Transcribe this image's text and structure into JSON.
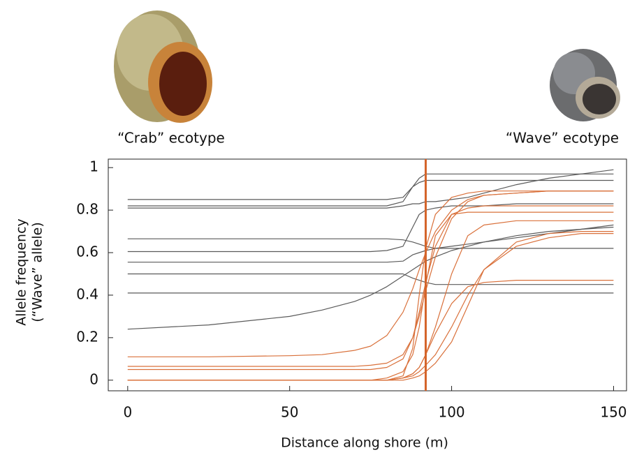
{
  "chart_data": {
    "type": "line",
    "labels": [
      "“Crab” ecotype",
      "“Wave” ecotype"
    ],
    "xlabel": "Distance along shore (m)",
    "ylabel": [
      "Allele frequency",
      "(“Wave” allele)"
    ],
    "x": [
      0,
      25,
      50,
      60,
      70,
      75,
      80,
      85,
      88,
      90,
      92,
      95,
      100,
      105,
      110,
      120,
      130,
      140,
      150
    ],
    "series": [
      {
        "color": "#5a5a5a",
        "values": [
          0.85,
          0.85,
          0.85,
          0.85,
          0.85,
          0.85,
          0.85,
          0.86,
          0.91,
          0.95,
          0.97,
          0.97,
          0.97,
          0.97,
          0.97,
          0.97,
          0.97,
          0.97,
          0.97
        ]
      },
      {
        "color": "#5a5a5a",
        "values": [
          0.82,
          0.82,
          0.82,
          0.82,
          0.82,
          0.82,
          0.82,
          0.84,
          0.91,
          0.93,
          0.94,
          0.94,
          0.94,
          0.94,
          0.94,
          0.94,
          0.94,
          0.94,
          0.94
        ]
      },
      {
        "color": "#5a5a5a",
        "values": [
          0.81,
          0.81,
          0.81,
          0.81,
          0.81,
          0.81,
          0.81,
          0.82,
          0.83,
          0.83,
          0.84,
          0.84,
          0.85,
          0.86,
          0.88,
          0.92,
          0.95,
          0.97,
          0.99
        ]
      },
      {
        "color": "#5a5a5a",
        "values": [
          0.605,
          0.605,
          0.605,
          0.605,
          0.605,
          0.605,
          0.61,
          0.63,
          0.72,
          0.78,
          0.8,
          0.81,
          0.82,
          0.82,
          0.82,
          0.83,
          0.83,
          0.83,
          0.83
        ]
      },
      {
        "color": "#5a5a5a",
        "values": [
          0.665,
          0.665,
          0.665,
          0.665,
          0.665,
          0.665,
          0.665,
          0.66,
          0.65,
          0.64,
          0.63,
          0.62,
          0.62,
          0.62,
          0.62,
          0.62,
          0.62,
          0.62,
          0.62
        ]
      },
      {
        "color": "#5a5a5a",
        "values": [
          0.555,
          0.555,
          0.555,
          0.555,
          0.555,
          0.555,
          0.555,
          0.56,
          0.59,
          0.6,
          0.61,
          0.62,
          0.63,
          0.64,
          0.65,
          0.67,
          0.69,
          0.71,
          0.73
        ]
      },
      {
        "color": "#5a5a5a",
        "values": [
          0.5,
          0.5,
          0.5,
          0.5,
          0.5,
          0.5,
          0.5,
          0.5,
          0.48,
          0.47,
          0.46,
          0.45,
          0.45,
          0.45,
          0.45,
          0.45,
          0.45,
          0.45,
          0.45
        ]
      },
      {
        "color": "#5a5a5a",
        "values": [
          0.41,
          0.41,
          0.41,
          0.41,
          0.41,
          0.41,
          0.41,
          0.41,
          0.41,
          0.41,
          0.41,
          0.41,
          0.41,
          0.41,
          0.41,
          0.41,
          0.41,
          0.41,
          0.41
        ]
      },
      {
        "color": "#5a5a5a",
        "values": [
          0.24,
          0.26,
          0.3,
          0.33,
          0.37,
          0.4,
          0.44,
          0.49,
          0.52,
          0.54,
          0.56,
          0.58,
          0.61,
          0.63,
          0.65,
          0.68,
          0.7,
          0.71,
          0.72
        ]
      },
      {
        "color": "#d9703a",
        "values": [
          0.11,
          0.11,
          0.115,
          0.12,
          0.14,
          0.16,
          0.21,
          0.32,
          0.43,
          0.52,
          0.6,
          0.7,
          0.8,
          0.85,
          0.87,
          0.88,
          0.89,
          0.89,
          0.89
        ]
      },
      {
        "color": "#d9703a",
        "values": [
          0.065,
          0.065,
          0.065,
          0.065,
          0.065,
          0.07,
          0.08,
          0.12,
          0.2,
          0.3,
          0.42,
          0.58,
          0.76,
          0.84,
          0.87,
          0.88,
          0.89,
          0.89,
          0.89
        ]
      },
      {
        "color": "#d9703a",
        "values": [
          0.05,
          0.05,
          0.05,
          0.05,
          0.05,
          0.05,
          0.06,
          0.1,
          0.2,
          0.32,
          0.46,
          0.63,
          0.78,
          0.81,
          0.82,
          0.82,
          0.82,
          0.82,
          0.82
        ]
      },
      {
        "color": "#d9703a",
        "values": [
          0,
          0,
          0,
          0,
          0,
          0,
          0.01,
          0.04,
          0.12,
          0.25,
          0.45,
          0.68,
          0.78,
          0.79,
          0.79,
          0.79,
          0.79,
          0.79,
          0.79
        ]
      },
      {
        "color": "#d9703a",
        "values": [
          0,
          0,
          0,
          0,
          0,
          0,
          0,
          0.01,
          0.03,
          0.06,
          0.12,
          0.25,
          0.5,
          0.68,
          0.73,
          0.75,
          0.75,
          0.75,
          0.75
        ]
      },
      {
        "color": "#d9703a",
        "values": [
          0,
          0,
          0,
          0,
          0,
          0,
          0,
          0,
          0.01,
          0.02,
          0.04,
          0.08,
          0.18,
          0.35,
          0.52,
          0.65,
          0.69,
          0.7,
          0.7
        ]
      },
      {
        "color": "#d9703a",
        "values": [
          0,
          0,
          0,
          0,
          0,
          0,
          0,
          0.01,
          0.03,
          0.06,
          0.12,
          0.22,
          0.36,
          0.44,
          0.46,
          0.47,
          0.47,
          0.47,
          0.47
        ]
      },
      {
        "color": "#d9703a",
        "values": [
          0,
          0,
          0,
          0,
          0,
          0,
          0,
          0.01,
          0.02,
          0.04,
          0.07,
          0.12,
          0.25,
          0.4,
          0.52,
          0.63,
          0.67,
          0.69,
          0.69
        ]
      },
      {
        "color": "#d9703a",
        "values": [
          0,
          0,
          0,
          0,
          0,
          0,
          0,
          0.02,
          0.15,
          0.4,
          0.62,
          0.78,
          0.86,
          0.88,
          0.89,
          0.89,
          0.89,
          0.89,
          0.89
        ]
      }
    ],
    "reference_line": {
      "x": 92,
      "color": "#d4642a"
    },
    "xlim": [
      -6,
      154
    ],
    "ylim": [
      -0.05,
      1.04
    ],
    "xticks": [
      0,
      50,
      100,
      150
    ],
    "yticks": [
      0,
      0.2,
      0.4,
      0.6,
      0.8,
      1
    ]
  }
}
